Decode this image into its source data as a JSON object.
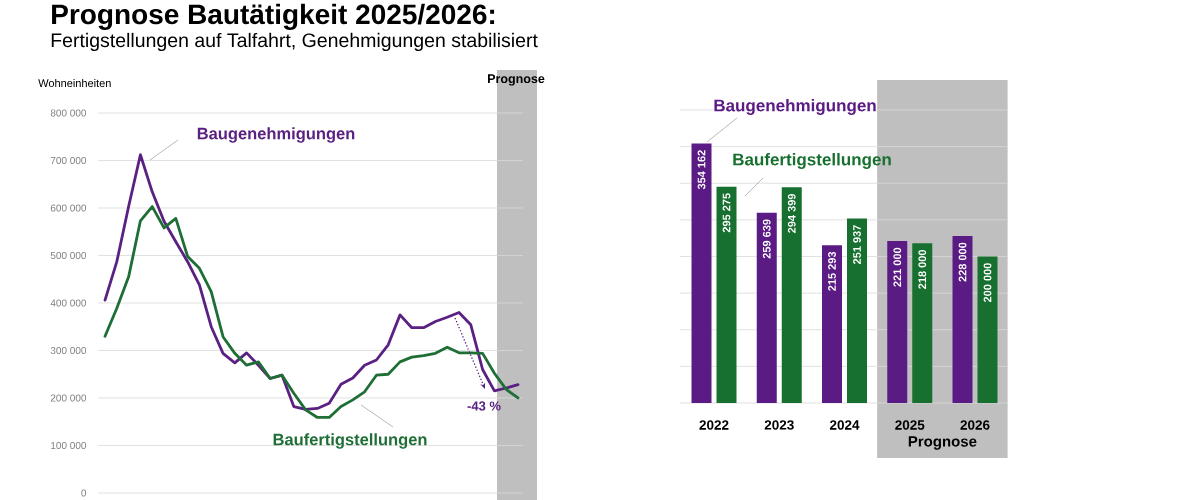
{
  "chart_data": [
    {
      "type": "line",
      "title": "Prognose Bautätigkeit 2025/2026:",
      "subtitle": "Fertigstellungen auf Talfahrt, Genehmigungen stabilisiert",
      "ylabel": "Wohneinheiten",
      "categories": [
        null,
        null,
        null,
        null,
        null,
        null,
        null,
        null,
        null,
        null,
        null,
        null,
        null,
        null,
        null,
        null,
        null,
        null,
        null,
        null,
        null,
        null,
        null,
        null,
        null,
        null,
        null,
        null,
        null,
        null,
        null,
        null,
        null,
        null,
        null,
        null
      ],
      "series": [
        {
          "name": "Baugenehmigungen",
          "color": "#5b2182",
          "values": [
            406000,
            487000,
            603000,
            712000,
            634000,
            572000,
            529000,
            487000,
            438000,
            350000,
            294000,
            274000,
            295000,
            269000,
            241000,
            248000,
            182000,
            176000,
            178000,
            189000,
            229000,
            242000,
            269000,
            280000,
            312000,
            375000,
            348000,
            348000,
            361000,
            370000,
            380000,
            354000,
            260000,
            215000,
            221000,
            228000
          ]
        },
        {
          "name": "Baufertigstellungen",
          "color": "#1e6e36",
          "values": [
            330000,
            389000,
            455000,
            573000,
            603000,
            558000,
            578000,
            498000,
            473000,
            424000,
            329000,
            294000,
            269000,
            276000,
            241000,
            248000,
            210000,
            175000,
            159000,
            159000,
            182000,
            196000,
            213000,
            248000,
            250000,
            276000,
            286000,
            289000,
            294000,
            307000,
            295000,
            295000,
            294000,
            252000,
            218000,
            200000
          ]
        }
      ],
      "ylim": [
        0,
        800000
      ],
      "yticks": [
        0,
        {
          "value": 100000,
          "label": "100 000"
        },
        {
          "value": 200000,
          "label": "200 000"
        },
        {
          "value": 300000,
          "label": "300 000"
        },
        {
          "value": 400000,
          "label": "400 000"
        },
        {
          "value": 500000,
          "label": "500 000"
        },
        {
          "value": 600000,
          "label": "600 000"
        },
        {
          "value": 700000,
          "label": "700 000"
        },
        {
          "value": 800000,
          "label": "800 000"
        }
      ],
      "grid": "y",
      "tick_labels": "y",
      "annotations": [
        "-43 %",
        "Prognose"
      ]
    },
    {
      "type": "bar",
      "categories": [
        "2022",
        "2023",
        "2024",
        "2025",
        "2026"
      ],
      "series": [
        {
          "name": "Baugenehmigungen",
          "color": "#5a1b85",
          "values": [
            354162,
            259639,
            215293,
            221000,
            228000
          ],
          "value_labels": [
            "354 162",
            "259 639",
            "215 293",
            "221 000",
            "228 000"
          ]
        },
        {
          "name": "Baufertigstellungen",
          "color": "#17702f",
          "values": [
            295275,
            294399,
            251937,
            218000,
            200000
          ],
          "value_labels": [
            "295 275",
            "294 399",
            "251 937",
            "218 000",
            "200 000"
          ]
        }
      ],
      "ylim": [
        0,
        400000
      ],
      "yticks": [
        {
          "value": 0,
          "label": null
        },
        {
          "value": 50000,
          "label": null
        },
        {
          "value": 100000,
          "label": null
        },
        {
          "value": 150000,
          "label": null
        },
        {
          "value": 200000,
          "label": null
        },
        {
          "value": 250000,
          "label": null
        },
        {
          "value": 300000,
          "label": null
        },
        {
          "value": 350000,
          "label": null
        },
        {
          "value": 400000,
          "label": null
        }
      ],
      "grid": "y",
      "tick_labels": "x",
      "bands": [
        {
          "axis": "x",
          "from": "2025",
          "to": "2026",
          "label": "Prognose",
          "color": "#bfbfbf"
        }
      ]
    }
  ]
}
